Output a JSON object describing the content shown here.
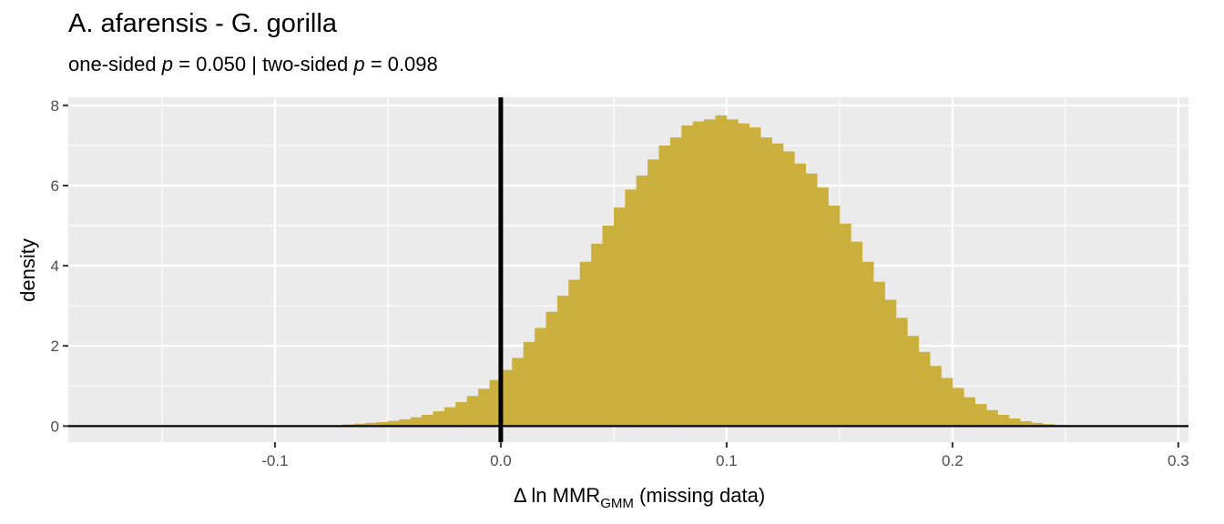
{
  "chart_data": {
    "type": "histogram",
    "title": "A. afarensis - G. gorilla",
    "subtitle": {
      "prefix": "one-sided ",
      "p_symbol": "p",
      "one_sided_value": " = 0.050 | two-sided ",
      "two_sided_value": " = 0.098"
    },
    "xlabel": {
      "main": "Δ ln MMR",
      "sub": "GMM",
      "suffix": " (missing data)"
    },
    "ylabel": "density",
    "xlim": [
      -0.1915,
      0.3045
    ],
    "ylim": [
      -0.4,
      8.2
    ],
    "x_ticks": [
      -0.1,
      0.0,
      0.1,
      0.2,
      0.3
    ],
    "x_tick_labels": [
      "-0.1",
      "0.0",
      "0.1",
      "0.2",
      "0.3"
    ],
    "y_ticks": [
      0,
      2,
      4,
      6,
      8
    ],
    "y_tick_labels": [
      "0",
      "2",
      "4",
      "6",
      "8"
    ],
    "bin_width": 0.005,
    "bins_x_start": -0.08,
    "values": [
      0.01,
      0.02,
      0.04,
      0.06,
      0.08,
      0.1,
      0.13,
      0.17,
      0.22,
      0.28,
      0.37,
      0.47,
      0.6,
      0.75,
      0.93,
      1.15,
      1.4,
      1.7,
      2.1,
      2.45,
      2.85,
      3.25,
      3.65,
      4.1,
      4.55,
      5.0,
      5.45,
      5.9,
      6.25,
      6.65,
      7.0,
      7.2,
      7.5,
      7.6,
      7.65,
      7.75,
      7.65,
      7.55,
      7.45,
      7.2,
      7.05,
      6.85,
      6.55,
      6.3,
      5.95,
      5.5,
      5.05,
      4.6,
      4.1,
      3.6,
      3.15,
      2.7,
      2.25,
      1.85,
      1.5,
      1.2,
      0.95,
      0.72,
      0.55,
      0.4,
      0.28,
      0.19,
      0.12,
      0.08,
      0.05,
      0.03,
      0.02,
      0.01
    ],
    "vline_x": 0.0,
    "hline_y": 0,
    "colors": {
      "bar": "#CBB03E",
      "panel": "#EBEBEB",
      "grid": "#FFFFFF",
      "line": "#000000"
    },
    "grid": true
  }
}
